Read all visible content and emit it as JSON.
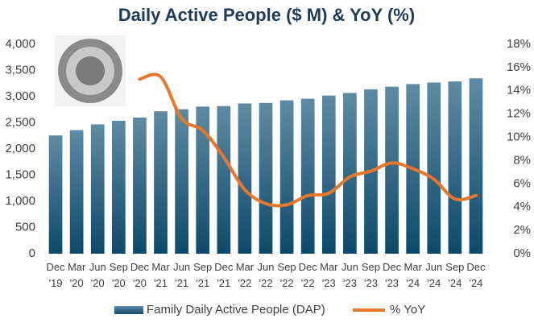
{
  "chart_data": {
    "type": "bar-line",
    "title": "Daily Active People ($ M) & YoY (%)",
    "categories": [
      "Dec '19",
      "Mar '20",
      "Jun '20",
      "Sep '20",
      "Dec '20",
      "Mar '21",
      "Jun '21",
      "Sep '21",
      "Dec '21",
      "Mar '22",
      "Jun '22",
      "Sep '22",
      "Dec '22",
      "Mar '23",
      "Jun '23",
      "Sep '23",
      "Dec '23",
      "Mar '24",
      "Jun '24",
      "Sep '24",
      "Dec '24"
    ],
    "series": [
      {
        "name": "Family Daily Active People (DAP)",
        "type": "bar",
        "color": "#1a5a7a",
        "values": [
          2260,
          2360,
          2470,
          2540,
          2600,
          2720,
          2760,
          2810,
          2820,
          2870,
          2880,
          2930,
          2960,
          3020,
          3070,
          3140,
          3190,
          3240,
          3270,
          3290,
          3350
        ]
      },
      {
        "name": "% YoY",
        "type": "line",
        "axis": "y2",
        "color": "#e8762d",
        "values": [
          null,
          null,
          null,
          null,
          15.0,
          15.2,
          11.6,
          10.6,
          8.3,
          5.5,
          4.3,
          4.2,
          5.0,
          5.2,
          6.6,
          7.1,
          7.8,
          7.3,
          6.4,
          4.7,
          5.0
        ]
      }
    ],
    "ylim": [
      0,
      4000
    ],
    "yticks": [
      0,
      500,
      {
        "value": 1000,
        "label": "1,000"
      },
      {
        "value": 1500,
        "label": "1,500"
      },
      {
        "value": 2000,
        "label": "2,000"
      },
      {
        "value": 2500,
        "label": "2,500"
      },
      {
        "value": 3000,
        "label": "3,000"
      },
      {
        "value": 3500,
        "label": "3,500"
      },
      {
        "value": 4000,
        "label": "4,000"
      }
    ],
    "y2lim": [
      0,
      18
    ],
    "y2ticks": [
      {
        "value": 0,
        "label": "0%"
      },
      {
        "value": 2,
        "label": "2%"
      },
      {
        "value": 4,
        "label": "4%"
      },
      {
        "value": 6,
        "label": "6%"
      },
      {
        "value": 8,
        "label": "8%"
      },
      {
        "value": 10,
        "label": "10%"
      },
      {
        "value": 12,
        "label": "12%"
      },
      {
        "value": 14,
        "label": "14%"
      },
      {
        "value": 16,
        "label": "16%"
      },
      {
        "value": 18,
        "label": "18%"
      }
    ],
    "grid": false,
    "legend": "bottom"
  }
}
